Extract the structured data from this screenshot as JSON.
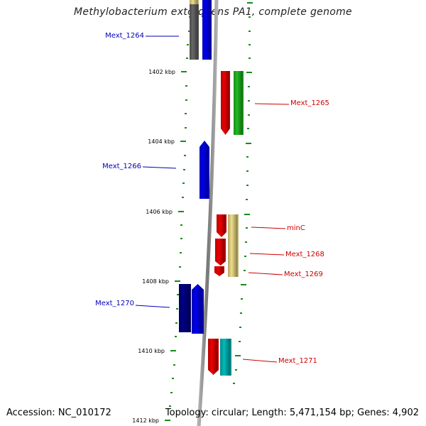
{
  "title": "Methylobacterium extorquens PA1, complete genome",
  "footer": {
    "accession": "Accession: NC_010172",
    "topology": "Topology: circular; Length: 5,471,154 bp; Genes: 4,902"
  },
  "kbp_labels": [
    "1402 kbp",
    "1404 kbp",
    "1406 kbp",
    "1408 kbp",
    "1410 kbp",
    "1412 kbp"
  ],
  "genes_left": [
    {
      "label": "Mext_1264",
      "color": "#0000bb"
    },
    {
      "label": "Mext_1266",
      "color": "#0000bb"
    },
    {
      "label": "Mext_1270",
      "color": "#0000bb"
    }
  ],
  "genes_right": [
    {
      "label": "Mext_1265",
      "color": "#cc0000"
    },
    {
      "label": "minC",
      "color": "#cc0000"
    },
    {
      "label": "Mext_1268",
      "color": "#cc0000"
    },
    {
      "label": "Mext_1269",
      "color": "#cc0000"
    },
    {
      "label": "Mext_1271",
      "color": "#cc0000"
    }
  ],
  "colors": {
    "backbone": "#8a8a8a",
    "tick": "#1a8a1a",
    "red": "#ee0000",
    "green": "#22bb22",
    "blue": "#0000ee",
    "navy": "#000088",
    "gray": "#666666",
    "yellow": "#eedd88",
    "cyan": "#00bbbb"
  }
}
